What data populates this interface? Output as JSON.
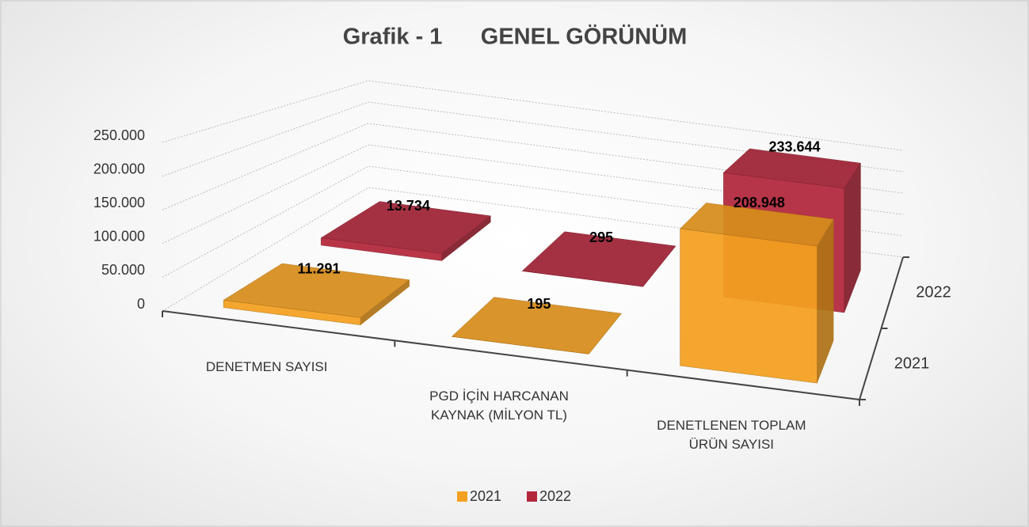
{
  "chart_data": {
    "type": "bar3d",
    "title": "Grafik - 1      GENEL GÖRÜNÜM",
    "categories": [
      "DENETMEN SAYISI",
      "PGD İÇİN HARCANAN KAYNAK (MİLYON TL)",
      "DENETLENEN TOPLAM ÜRÜN SAYISI"
    ],
    "series": [
      {
        "name": "2021",
        "color": "#f4a020",
        "values": [
          11291,
          195,
          208948
        ],
        "value_labels": [
          "11.291",
          "195",
          "208.948"
        ]
      },
      {
        "name": "2022",
        "color": "#b3273b",
        "values": [
          13734,
          295,
          233644
        ],
        "value_labels": [
          "13.734",
          "295",
          "233.644"
        ]
      }
    ],
    "ylim": [
      0,
      250000
    ],
    "yticks": [
      0,
      {
        "value": 50000,
        "label": "50.000"
      },
      {
        "value": 100000,
        "label": "100.000"
      },
      {
        "value": 150000,
        "label": "150.000"
      },
      {
        "value": 200000,
        "label": "200.000"
      },
      {
        "value": 250000,
        "label": "250.000"
      }
    ],
    "grid": true,
    "legend": "bottom"
  }
}
